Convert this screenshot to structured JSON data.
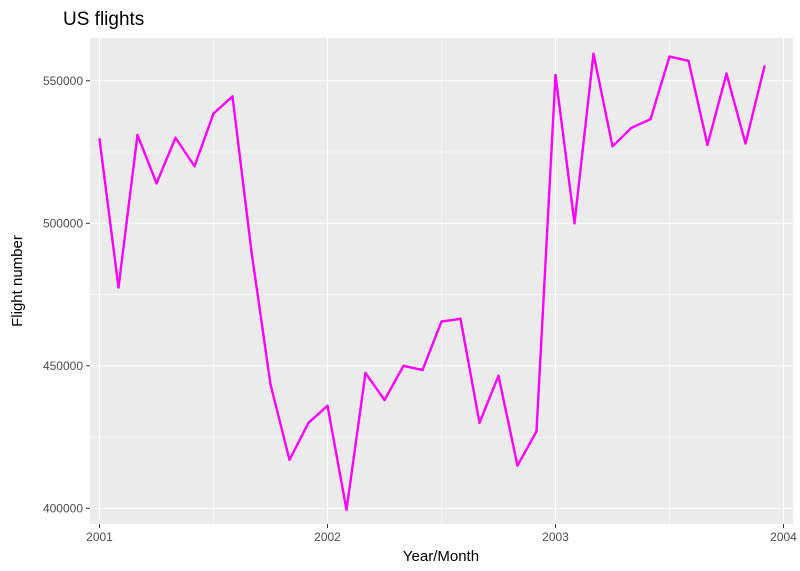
{
  "chart_data": {
    "type": "line",
    "title": "US flights",
    "xlabel": "Year/Month",
    "ylabel": "Flight number",
    "xlim": [
      2000.9583,
      2004.0417
    ],
    "ylim": [
      394500,
      565000
    ],
    "x_ticks": [
      {
        "value": 2001,
        "label": "2001"
      },
      {
        "value": 2002,
        "label": "2002"
      },
      {
        "value": 2003,
        "label": "2003"
      },
      {
        "value": 2004,
        "label": "2004"
      }
    ],
    "y_ticks": [
      {
        "value": 400000,
        "label": "400000"
      },
      {
        "value": 450000,
        "label": "450000"
      },
      {
        "value": 500000,
        "label": "500000"
      },
      {
        "value": 550000,
        "label": "550000"
      }
    ],
    "grid": true,
    "background": "#ebebeb",
    "series": [
      {
        "color": "#ff00ff",
        "x": [
          "2001-01",
          "2001-02",
          "2001-03",
          "2001-04",
          "2001-05",
          "2001-06",
          "2001-07",
          "2001-08",
          "2001-09",
          "2001-10",
          "2001-11",
          "2001-12",
          "2002-01",
          "2002-02",
          "2002-03",
          "2002-04",
          "2002-05",
          "2002-06",
          "2002-07",
          "2002-08",
          "2002-09",
          "2002-10",
          "2002-11",
          "2002-12",
          "2003-01",
          "2003-02",
          "2003-03",
          "2003-04",
          "2003-05",
          "2003-06",
          "2003-07",
          "2003-08",
          "2003-09",
          "2003-10",
          "2003-11",
          "2003-12"
        ],
        "values": [
          529500,
          477500,
          531000,
          514000,
          530000,
          520000,
          538500,
          544500,
          490000,
          443500,
          417000,
          430000,
          436000,
          399500,
          447500,
          438000,
          450000,
          448500,
          465500,
          466500,
          430000,
          446500,
          415000,
          427000,
          552000,
          500000,
          559500,
          527000,
          533500,
          536500,
          558500,
          557000,
          527500,
          552500,
          528000,
          555000
        ]
      }
    ]
  }
}
